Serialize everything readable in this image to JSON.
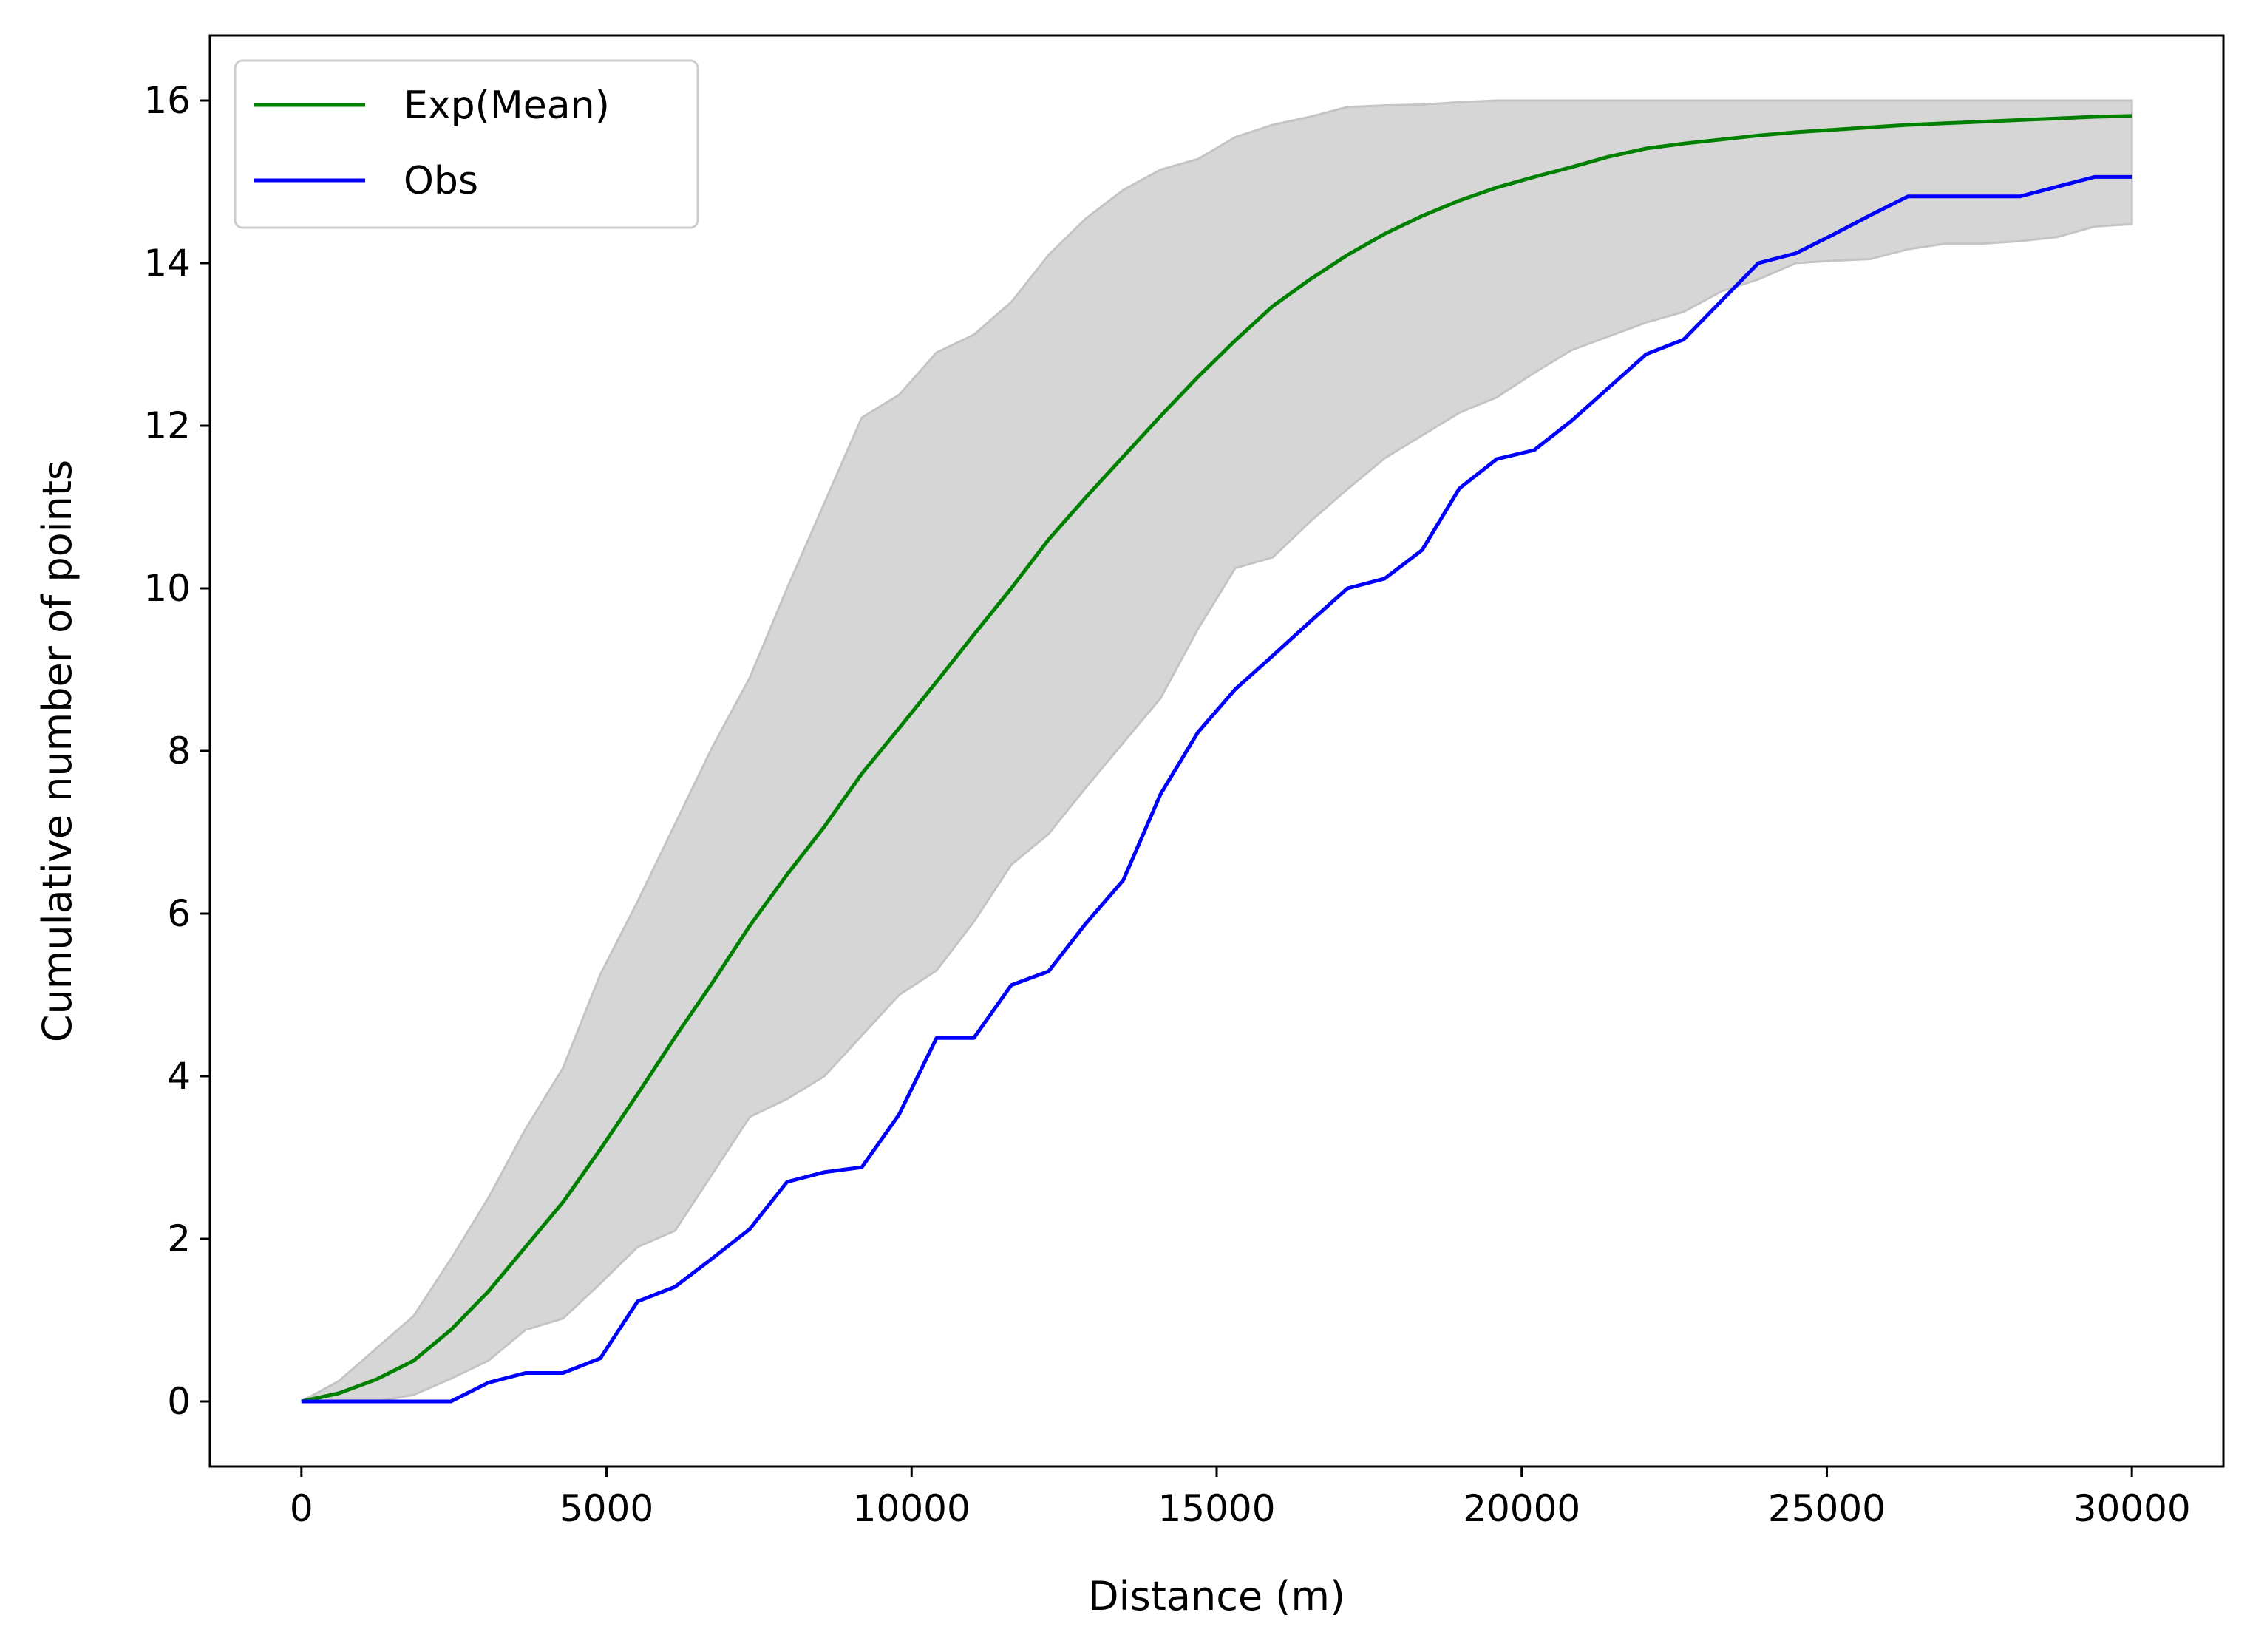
{
  "chart_data": {
    "type": "line",
    "title": "",
    "xlabel": "Distance (m)",
    "ylabel": "Cumulative number of points",
    "xlim": [
      -1500,
      31500
    ],
    "ylim": [
      -0.8,
      16.8
    ],
    "xticks": [
      "0",
      "5000",
      "10000",
      "15000",
      "20000",
      "25000",
      "30000"
    ],
    "yticks": [
      "0",
      "2",
      "4",
      "6",
      "8",
      "10",
      "12",
      "14",
      "16"
    ],
    "grid": false,
    "legend_position": "top-left",
    "x": [
      0,
      612,
      1224,
      1837,
      2449,
      3061,
      3673,
      4286,
      4898,
      5510,
      6122,
      6735,
      7347,
      7959,
      8571,
      9184,
      9796,
      10408,
      11020,
      11633,
      12245,
      12857,
      13469,
      14082,
      14694,
      15306,
      15918,
      16531,
      17143,
      17755,
      18367,
      18980,
      19592,
      20204,
      20816,
      21429,
      22041,
      22653,
      23265,
      23878,
      24490,
      25102,
      25714,
      26327,
      26939,
      27551,
      28163,
      28776,
      29388,
      30000
    ],
    "series": [
      {
        "name": "Exp(Mean)",
        "color": "#008000",
        "values": [
          0,
          0.1,
          0.27,
          0.5,
          0.88,
          1.35,
          1.9,
          2.45,
          3.1,
          3.78,
          4.48,
          5.15,
          5.85,
          6.48,
          7.07,
          7.72,
          8.28,
          8.85,
          9.43,
          10.0,
          10.6,
          11.12,
          11.62,
          12.12,
          12.6,
          13.05,
          13.47,
          13.8,
          14.1,
          14.36,
          14.58,
          14.77,
          14.93,
          15.06,
          15.18,
          15.31,
          15.41,
          15.47,
          15.52,
          15.57,
          15.61,
          15.64,
          15.67,
          15.7,
          15.72,
          15.74,
          15.76,
          15.78,
          15.8,
          15.81
        ]
      },
      {
        "name": "Obs",
        "color": "#0000ff",
        "values": [
          0,
          0,
          0,
          0,
          0,
          0.23,
          0.35,
          0.35,
          0.53,
          1.23,
          1.41,
          1.76,
          2.12,
          2.7,
          2.82,
          2.88,
          3.53,
          4.47,
          4.47,
          5.12,
          5.29,
          5.88,
          6.41,
          7.47,
          8.23,
          8.76,
          9.17,
          9.59,
          10.0,
          10.12,
          10.47,
          11.23,
          11.59,
          11.7,
          12.06,
          12.47,
          12.88,
          13.06,
          13.53,
          14.0,
          14.12,
          14.35,
          14.59,
          14.82,
          14.82,
          14.82,
          14.82,
          14.94,
          15.06,
          15.06
        ]
      }
    ],
    "envelope": {
      "color": "#d6d6d6",
      "lower": [
        0,
        0,
        0,
        0.08,
        0.28,
        0.5,
        0.88,
        1.02,
        1.45,
        1.9,
        2.1,
        2.8,
        3.5,
        3.72,
        4.0,
        4.5,
        5.0,
        5.3,
        5.9,
        6.6,
        6.98,
        7.55,
        8.1,
        8.65,
        9.5,
        10.25,
        10.38,
        10.82,
        11.22,
        11.6,
        11.88,
        12.16,
        12.35,
        12.65,
        12.93,
        13.1,
        13.27,
        13.4,
        13.65,
        13.8,
        14.0,
        14.03,
        14.05,
        14.17,
        14.24,
        14.24,
        14.27,
        14.32,
        14.45,
        14.48
      ],
      "upper": [
        0,
        0.25,
        0.65,
        1.05,
        1.75,
        2.5,
        3.35,
        4.1,
        5.25,
        6.15,
        7.1,
        8.05,
        8.9,
        10.0,
        11.05,
        12.1,
        12.38,
        12.9,
        13.12,
        13.52,
        14.1,
        14.55,
        14.9,
        15.15,
        15.28,
        15.55,
        15.7,
        15.8,
        15.92,
        15.94,
        15.95,
        15.98,
        16.0,
        16.0,
        16.0,
        16.0,
        16.0,
        16.0,
        16.0,
        16.0,
        16.0,
        16.0,
        16.0,
        16.0,
        16.0,
        16.0,
        16.0,
        16.0,
        16.0,
        16.0
      ]
    }
  }
}
